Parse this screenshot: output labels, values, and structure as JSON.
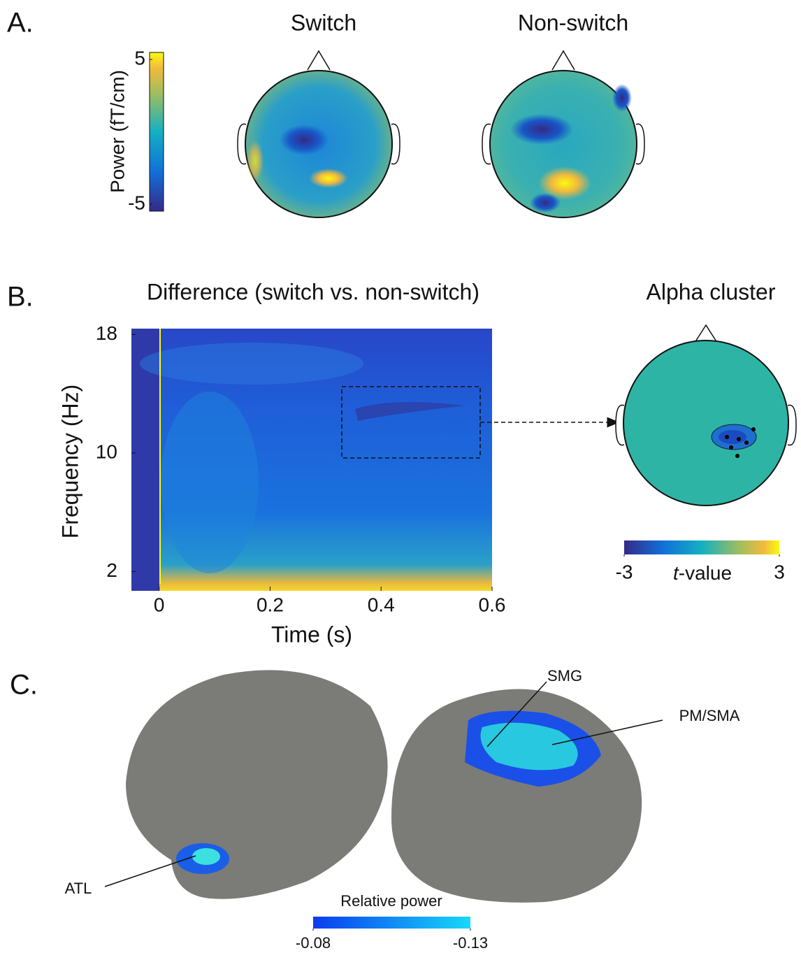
{
  "panel_a": {
    "label": "A.",
    "topo_titles": [
      "Switch",
      "Non-switch"
    ],
    "colorbar": {
      "label": "Power (fT/cm)",
      "lim": [
        -5,
        5
      ],
      "ticks": [
        5,
        -5
      ]
    }
  },
  "panel_b": {
    "label": "B.",
    "title": "Difference (switch vs. non-switch)",
    "x_label": "Time (s)",
    "y_label": "Frequency (Hz)",
    "xlim": [
      -0.05,
      0.6
    ],
    "xticks": [
      0,
      0.2,
      0.4,
      0.6
    ],
    "ylim": [
      0.7,
      18.4
    ],
    "yticks": [
      2,
      10,
      18
    ],
    "topo_title": "Alpha cluster",
    "colorbar": {
      "label_italic": "t",
      "label_rest": "-value",
      "lim": [
        -3,
        3
      ],
      "ticks": [
        -3,
        3
      ]
    }
  },
  "panel_c": {
    "label": "C.",
    "regions": [
      "SMG",
      "PM/SMA",
      "ATL"
    ],
    "colorbar": {
      "label": "Relative power",
      "lim": [
        -0.08,
        -0.13
      ],
      "ticks": [
        -0.08,
        -0.13
      ]
    }
  }
}
